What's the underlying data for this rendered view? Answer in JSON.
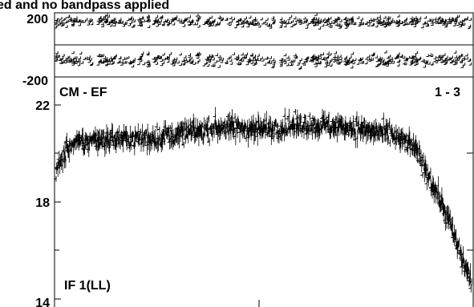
{
  "chart_data": [
    {
      "type": "scatter",
      "title": "ed and no bandpass applied",
      "ylim": [
        -200,
        200
      ],
      "yticks": [
        "200",
        "-200"
      ],
      "grid": false,
      "bands": [
        {
          "center": 140,
          "spread": 32
        },
        {
          "center": -100,
          "spread": 40
        }
      ],
      "zero_line": 0
    },
    {
      "type": "scatter",
      "baseline_label": "CM - EF",
      "pair_label": "1 - 3",
      "if_label": "IF 1(LL)",
      "ylim": [
        14,
        22
      ],
      "yticks": [
        "22",
        "18",
        "14"
      ],
      "grid": false,
      "trend": [
        {
          "x": 0.0,
          "y": 19.2
        },
        {
          "x": 0.03,
          "y": 20.3
        },
        {
          "x": 0.1,
          "y": 20.6
        },
        {
          "x": 0.2,
          "y": 20.6
        },
        {
          "x": 0.3,
          "y": 20.8
        },
        {
          "x": 0.4,
          "y": 21.1
        },
        {
          "x": 0.5,
          "y": 21.0
        },
        {
          "x": 0.6,
          "y": 21.2
        },
        {
          "x": 0.7,
          "y": 21.1
        },
        {
          "x": 0.8,
          "y": 20.8
        },
        {
          "x": 0.86,
          "y": 20.3
        },
        {
          "x": 0.9,
          "y": 19.0
        },
        {
          "x": 0.94,
          "y": 17.5
        },
        {
          "x": 0.97,
          "y": 16.0
        },
        {
          "x": 1.0,
          "y": 14.7
        }
      ],
      "noise": 0.35
    }
  ]
}
